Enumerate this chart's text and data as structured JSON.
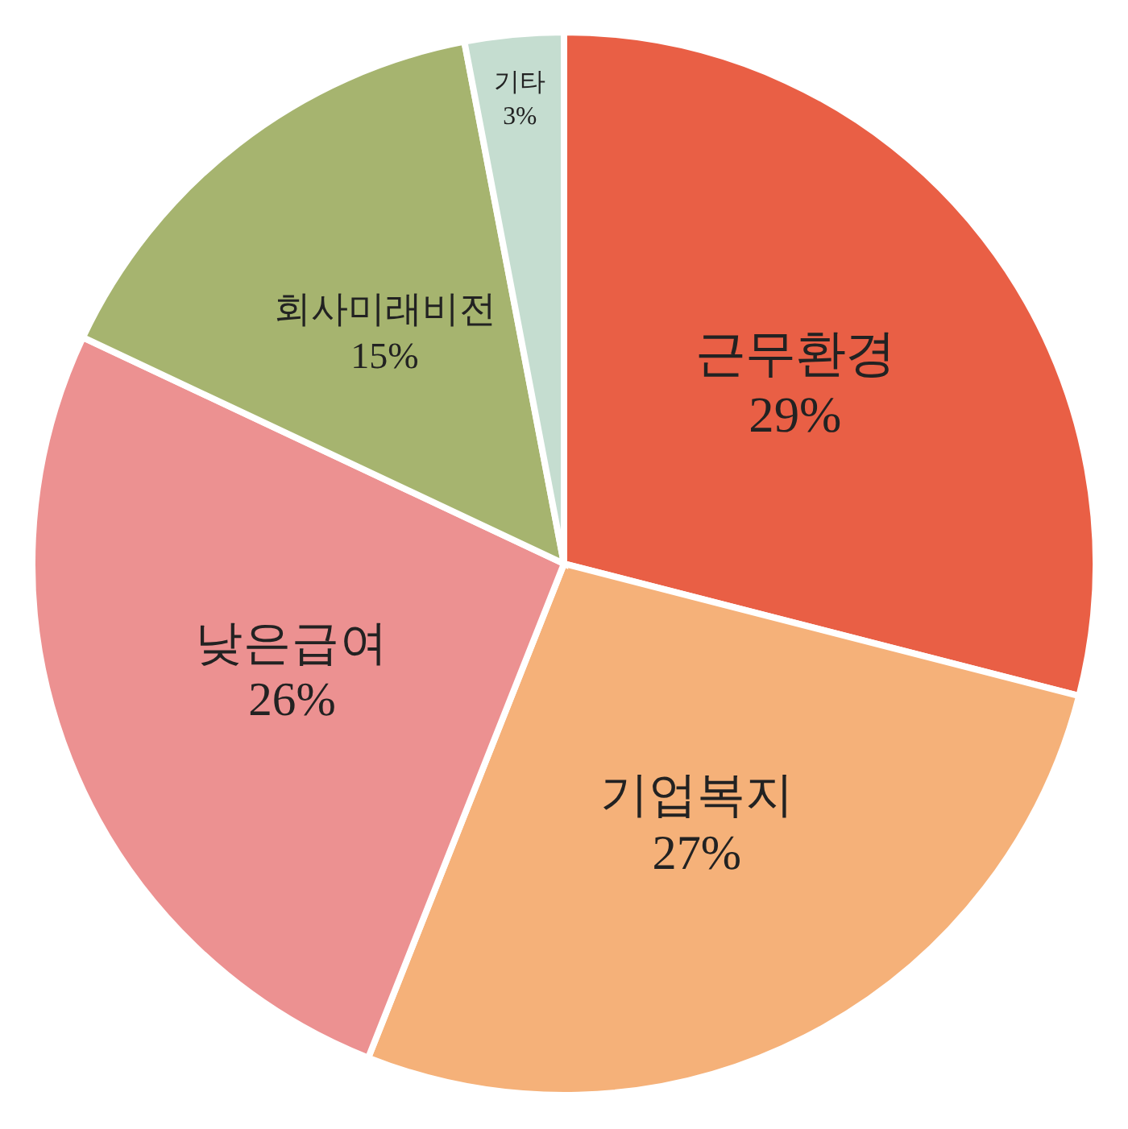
{
  "chart_data": {
    "type": "pie",
    "categories": [
      "근무환경",
      "기업복지",
      "낮은급여",
      "회사미래비전",
      "기타"
    ],
    "values": [
      29,
      27,
      26,
      15,
      3
    ],
    "value_labels": [
      "29%",
      "27%",
      "26%",
      "15%",
      "3%"
    ],
    "colors": [
      "#e95f45",
      "#f5b179",
      "#ec9191",
      "#a6b46f",
      "#c5ddd0"
    ],
    "legend": false
  }
}
